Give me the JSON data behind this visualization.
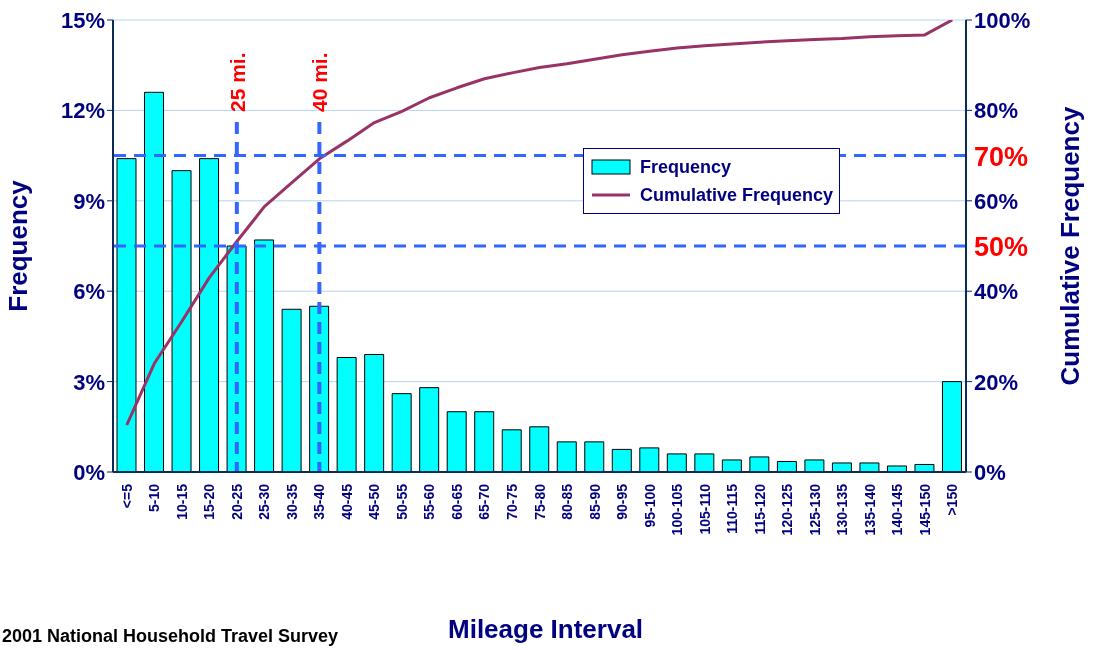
{
  "chart_data": {
    "type": "bar",
    "xlabel": "Mileage Interval",
    "ylabel": "Frequency",
    "y2label": "Cumulative Frequency",
    "annotations": [
      "2001 National Household Travel Survey"
    ],
    "categories": [
      "<=5",
      "5-10",
      "10-15",
      "15-20",
      "20-25",
      "25-30",
      "30-35",
      "35-40",
      "40-45",
      "45-50",
      "50-55",
      "55-60",
      "60-65",
      "65-70",
      "70-75",
      "75-80",
      "80-85",
      "85-90",
      "90-95",
      "95-100",
      "100-105",
      "105-110",
      "110-115",
      "115-120",
      "120-125",
      "125-130",
      "130-135",
      "135-140",
      "140-145",
      "145-150",
      ">150"
    ],
    "series": [
      {
        "name": "Frequency",
        "color": "#00ffff",
        "values": [
          10.4,
          12.6,
          10.0,
          10.4,
          7.5,
          7.7,
          5.4,
          5.5,
          3.8,
          3.9,
          2.6,
          2.8,
          2.0,
          2.0,
          1.4,
          1.5,
          1.0,
          1.0,
          0.75,
          0.8,
          0.6,
          0.6,
          0.4,
          0.5,
          0.35,
          0.4,
          0.3,
          0.3,
          0.2,
          0.25,
          3.0
        ]
      },
      {
        "name": "Cumulative Frequency",
        "type": "line",
        "axis": "y2",
        "color": "#993366",
        "values": [
          10.4,
          24,
          33.3,
          43,
          51,
          58.7,
          64,
          69.3,
          73.2,
          77.3,
          79.8,
          82.8,
          85,
          87,
          88.3,
          89.5,
          90.3,
          91.3,
          92.3,
          93.1,
          93.8,
          94.3,
          94.7,
          95.1,
          95.4,
          95.7,
          95.9,
          96.3,
          96.5,
          96.7,
          100
        ]
      }
    ],
    "ylim": [
      0,
      15
    ],
    "yticks": [
      {
        "value": 0,
        "label": "0%"
      },
      {
        "value": 3,
        "label": "3%"
      },
      {
        "value": 6,
        "label": "6%"
      },
      {
        "value": 9,
        "label": "9%"
      },
      {
        "value": 12,
        "label": "12%"
      },
      {
        "value": 15,
        "label": "15%"
      }
    ],
    "y2lim": [
      0,
      100
    ],
    "y2ticks": [
      {
        "value": 0,
        "label": "0%"
      },
      {
        "value": 20,
        "label": "20%"
      },
      {
        "value": 40,
        "label": "40%"
      },
      {
        "value": 60,
        "label": "60%"
      },
      {
        "value": 80,
        "label": "80%"
      },
      {
        "value": 100,
        "label": "100%"
      }
    ],
    "ref_lines": [
      {
        "axis": "x",
        "value": "20-25",
        "label": "25 mi.",
        "color": "#3366ff",
        "line_style": "dashed"
      },
      {
        "axis": "x",
        "value": "35-40",
        "label": "40 mi.",
        "color": "#3366ff",
        "line_style": "dashed"
      },
      {
        "axis": "y2",
        "value": 50,
        "label": "50%",
        "color": "#3366ff",
        "line_style": "dashed"
      },
      {
        "axis": "y2",
        "value": 70,
        "label": "70%",
        "color": "#3366ff",
        "line_style": "dashed"
      }
    ],
    "grid": "y",
    "legend": "right",
    "marker": "none",
    "line_style": "solid"
  }
}
